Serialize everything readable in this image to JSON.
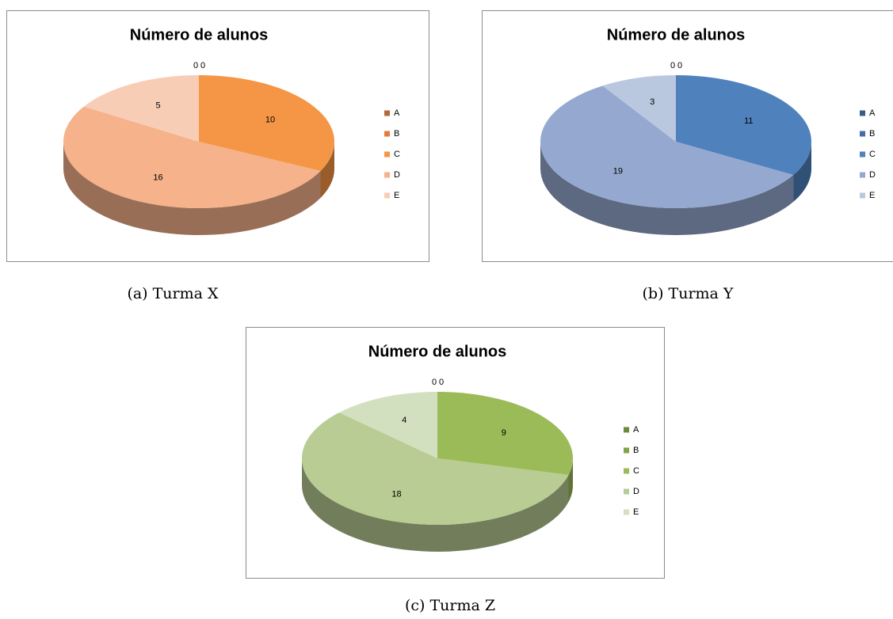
{
  "chart_data": [
    {
      "type": "pie",
      "title": "Número de alunos",
      "caption": "(a) Turma X",
      "categories": [
        "A",
        "B",
        "C",
        "D",
        "E"
      ],
      "values": [
        0,
        0,
        10,
        16,
        5
      ],
      "colors": [
        "#b5683a",
        "#de7f3a",
        "#f59646",
        "#f5b28b",
        "#f7cdb6"
      ]
    },
    {
      "type": "pie",
      "title": "Número de alunos",
      "caption": "(b) Turma Y",
      "categories": [
        "A",
        "B",
        "C",
        "D",
        "E"
      ],
      "values": [
        0,
        0,
        11,
        19,
        3
      ],
      "colors": [
        "#3a5b8a",
        "#456ea8",
        "#4f81bd",
        "#95a9d0",
        "#b9c7df"
      ]
    },
    {
      "type": "pie",
      "title": "Número de alunos",
      "caption": "(c) Turma Z",
      "categories": [
        "A",
        "B",
        "C",
        "D",
        "E"
      ],
      "values": [
        0,
        0,
        9,
        18,
        4
      ],
      "colors": [
        "#6a8c3a",
        "#7fa347",
        "#9bbb59",
        "#b8cc93",
        "#d3e0c0"
      ]
    }
  ]
}
